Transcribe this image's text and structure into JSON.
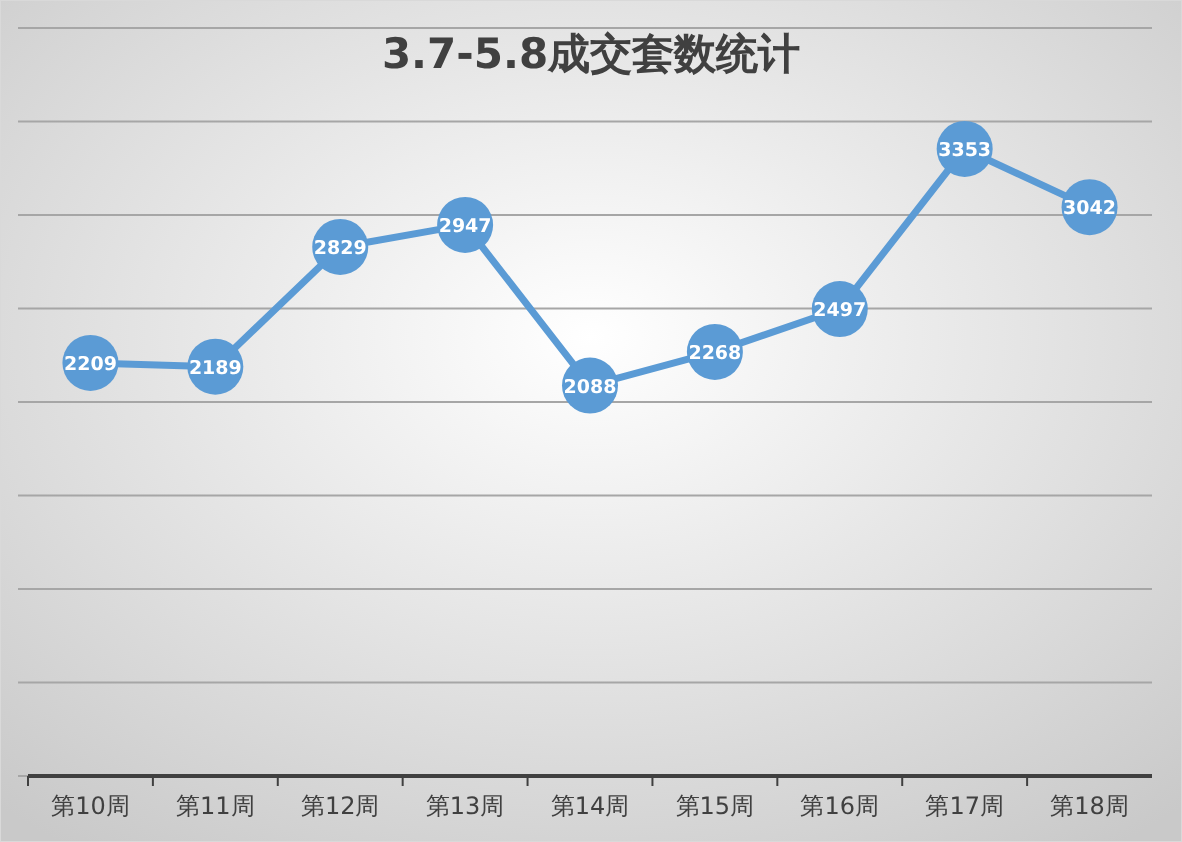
{
  "chart_data": {
    "type": "line",
    "title": "3.7-5.8成交套数统计",
    "categories": [
      "第10周",
      "第11周",
      "第12周",
      "第13周",
      "第14周",
      "第15周",
      "第16周",
      "第17周",
      "第18周"
    ],
    "series": [
      {
        "color": "#5b9bd5",
        "values": [
          2209,
          2189,
          2829,
          2947,
          2088,
          2268,
          2497,
          3353,
          3042
        ]
      }
    ],
    "ylim": [
      0,
      4000
    ],
    "yticks": [
      {
        "value": 0,
        "label": null
      },
      {
        "value": 500,
        "label": null
      },
      {
        "value": 1000,
        "label": null
      },
      {
        "value": 1500,
        "label": null
      },
      {
        "value": 2000,
        "label": null
      },
      {
        "value": 2500,
        "label": null
      },
      {
        "value": 3000,
        "label": null
      },
      {
        "value": 3500,
        "label": null
      },
      {
        "value": 4000,
        "label": null
      }
    ],
    "grid": "y",
    "marker": "circle",
    "line_style": "solid",
    "data_labels": true
  }
}
